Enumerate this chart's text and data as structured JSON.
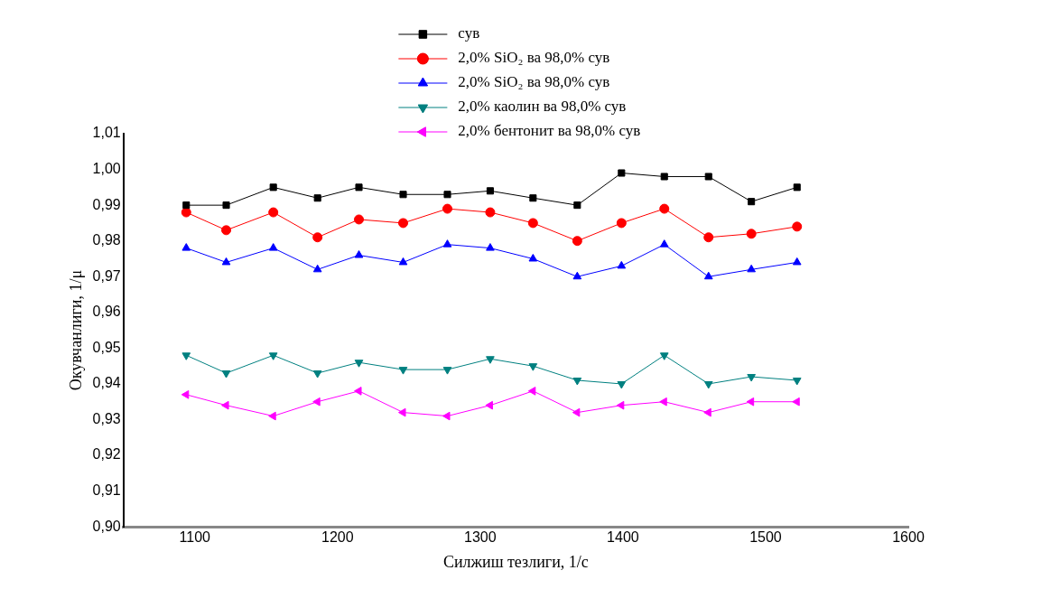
{
  "chart_data": {
    "type": "line",
    "xlabel": "Силжиш тезлиги, 1/с",
    "ylabel": "Окувчанлиги, 1/μ",
    "x": [
      1094,
      1122,
      1155,
      1186,
      1215,
      1246,
      1277,
      1307,
      1337,
      1368,
      1399,
      1429,
      1460,
      1490,
      1522
    ],
    "series": [
      {
        "name": "сув",
        "color": "#000000",
        "marker": "square",
        "values": [
          0.99,
          0.99,
          0.995,
          0.992,
          0.995,
          0.993,
          0.993,
          0.994,
          0.992,
          0.99,
          0.999,
          0.998,
          0.998,
          0.991,
          0.995
        ]
      },
      {
        "name": "2,0% SiO₂ ва 98,0% сув",
        "color": "#ff0000",
        "marker": "circle",
        "values": [
          0.988,
          0.983,
          0.988,
          0.981,
          0.986,
          0.985,
          0.989,
          0.988,
          0.985,
          0.98,
          0.985,
          0.989,
          0.981,
          0.982,
          0.984
        ]
      },
      {
        "name": "2,0% SiO₂ ва 98,0% сув",
        "color": "#0000ff",
        "marker": "triangle",
        "values": [
          0.978,
          0.974,
          0.978,
          0.972,
          0.976,
          0.974,
          0.979,
          0.978,
          0.975,
          0.97,
          0.973,
          0.979,
          0.97,
          0.972,
          0.974
        ]
      },
      {
        "name": "2,0% каолин ва 98,0% сув",
        "color": "#008080",
        "marker": "triangle-down",
        "values": [
          0.948,
          0.943,
          0.948,
          0.943,
          0.946,
          0.944,
          0.944,
          0.947,
          0.945,
          0.941,
          0.94,
          0.948,
          0.94,
          0.942,
          0.941
        ]
      },
      {
        "name": "2,0% бентонит ва 98,0% сув",
        "color": "#ff00ff",
        "marker": "triangle-left",
        "values": [
          0.937,
          0.934,
          0.931,
          0.935,
          0.938,
          0.932,
          0.931,
          0.934,
          0.938,
          0.932,
          0.934,
          0.935,
          0.932,
          0.935,
          0.935
        ]
      }
    ],
    "xlim": [
      1050,
      1600
    ],
    "xticks": [
      1100,
      1200,
      1300,
      1400,
      1500,
      1600
    ],
    "ylim": [
      0.9,
      1.01
    ],
    "yticks": [
      {
        "value": 0.9,
        "label": "0,90"
      },
      {
        "value": 0.91,
        "label": "0,91"
      },
      {
        "value": 0.92,
        "label": "0,92"
      },
      {
        "value": 0.93,
        "label": "0,93"
      },
      {
        "value": 0.94,
        "label": "0,94"
      },
      {
        "value": 0.95,
        "label": "0,95"
      },
      {
        "value": 0.96,
        "label": "0,96"
      },
      {
        "value": 0.97,
        "label": "0,97"
      },
      {
        "value": 0.98,
        "label": "0,98"
      },
      {
        "value": 0.99,
        "label": "0,99"
      },
      {
        "value": 1.0,
        "label": "1,00"
      },
      {
        "value": 1.01,
        "label": "1,01"
      }
    ],
    "grid": false,
    "legend": "top",
    "line_style": "solid"
  }
}
